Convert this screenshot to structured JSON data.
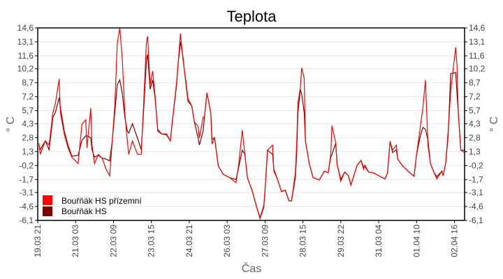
{
  "chart_data": {
    "type": "line",
    "title": "Teplota",
    "xlabel": "Čas",
    "ylabel": "° C",
    "ylabel_right": "° C",
    "x_unit": "hours since 19.03 21",
    "xlim": [
      0,
      338
    ],
    "ylim": [
      -6.1,
      14.6
    ],
    "yticks": [
      "14,6",
      "13,1",
      "11,6",
      "10,2",
      "8,7",
      "7,2",
      "5,7",
      "4,3",
      "2,8",
      "1,3",
      "-0,2",
      "-1,7",
      "-3,1",
      "-4,6",
      "-6,1"
    ],
    "ytick_values": [
      14.6,
      13.1,
      11.6,
      10.2,
      8.7,
      7.2,
      5.7,
      4.3,
      2.8,
      1.3,
      -0.2,
      -1.7,
      -3.1,
      -4.6,
      -6.1
    ],
    "xticks": [
      "19.03 21",
      "21.03 03",
      "22.03 09",
      "23.03 15",
      "24.03 21",
      "26.03 03",
      "27.03 09",
      "28.03 15",
      "29.03 22",
      "31.03 04",
      "01.04 10",
      "02.04 16"
    ],
    "xtick_values": [
      0,
      30,
      60,
      90,
      120,
      150,
      180,
      210,
      240,
      270,
      300,
      330
    ],
    "grid": true,
    "legend_position": "bottom-left",
    "x": [
      1,
      2,
      6,
      9,
      12,
      14,
      17,
      18,
      21,
      24,
      27,
      32,
      35,
      38,
      39,
      42,
      43,
      45,
      48,
      51,
      54,
      57,
      59,
      61,
      63,
      65,
      67,
      69,
      71,
      72,
      75,
      79,
      82,
      84,
      86,
      87,
      89,
      91,
      93,
      95,
      98,
      102,
      105,
      107,
      110,
      111,
      113,
      115,
      117,
      119,
      122,
      124,
      127,
      128,
      131,
      132,
      134,
      137,
      138,
      140,
      143,
      147,
      152,
      157,
      159,
      162,
      164,
      166,
      170,
      173,
      176,
      179,
      180,
      182,
      186,
      187,
      190,
      193,
      196,
      199,
      201,
      204,
      205,
      206,
      208,
      209,
      211,
      212,
      215,
      218,
      223,
      227,
      230,
      232,
      233,
      236,
      237,
      240,
      243,
      246,
      248,
      251,
      253,
      256,
      258,
      259,
      262,
      266,
      270,
      275,
      277,
      279,
      281,
      284,
      285,
      289,
      294,
      298,
      300,
      303,
      305,
      307,
      309,
      311,
      314,
      316,
      320,
      321,
      323,
      325,
      327,
      328,
      331,
      332,
      333,
      335,
      338
    ],
    "series": [
      {
        "name": "Bouřňák HS přízemní",
        "color": "#ff0000",
        "values": [
          2.2,
          1.0,
          2.45,
          2.0,
          5.45,
          6.5,
          9.1,
          5.45,
          3.2,
          1.7,
          0.7,
          0.0,
          4.25,
          4.7,
          1.7,
          6.0,
          2.0,
          0.0,
          1.0,
          0.6,
          -0.55,
          -1.3,
          2.45,
          6.2,
          12.95,
          14.6,
          11.2,
          5.45,
          2.45,
          1.0,
          2.45,
          1.0,
          1.0,
          6.7,
          12.95,
          13.7,
          8.45,
          9.95,
          7.25,
          3.5,
          3.2,
          3.2,
          2.45,
          5.0,
          8.75,
          10.5,
          14.0,
          11.2,
          9.2,
          7.0,
          6.2,
          4.5,
          4.0,
          2.75,
          5.0,
          5.0,
          7.6,
          5.45,
          2.1,
          2.8,
          -0.25,
          -1.15,
          -1.5,
          -2.05,
          -0.25,
          3.6,
          1.0,
          -1.5,
          -3.0,
          -4.5,
          -5.8,
          -4.5,
          -2.8,
          1.45,
          2.0,
          -0.8,
          -1.75,
          -3.0,
          -2.85,
          -4.0,
          -4.0,
          -1.0,
          2.0,
          6.5,
          8.2,
          10.3,
          9.2,
          2.45,
          0.0,
          -1.5,
          -1.75,
          -0.8,
          -1.0,
          1.0,
          4.1,
          2.2,
          0.0,
          -1.9,
          -0.9,
          -1.3,
          -2.3,
          -1.0,
          -0.15,
          0.35,
          -0.6,
          -0.15,
          -0.9,
          -1.0,
          -1.3,
          -1.65,
          -1.0,
          2.4,
          1.45,
          2.0,
          0.5,
          -0.25,
          -0.9,
          -1.35,
          1.0,
          4.0,
          6.0,
          9.0,
          2.0,
          0.0,
          -1.0,
          -1.65,
          -0.8,
          -1.3,
          0.0,
          3.5,
          7.7,
          9.0,
          12.5,
          10.5,
          5.45,
          1.45,
          1.2
        ]
      },
      {
        "name": "Bouřňák HS",
        "color": "#800000",
        "values": [
          2.0,
          1.5,
          2.45,
          1.5,
          5.0,
          5.5,
          7.1,
          6.0,
          3.5,
          2.0,
          0.8,
          0.9,
          2.5,
          3.0,
          3.0,
          2.8,
          1.5,
          0.7,
          0.9,
          0.6,
          0.5,
          0.3,
          2.45,
          5.5,
          8.5,
          9.0,
          7.5,
          5.0,
          3.5,
          3.3,
          4.3,
          2.75,
          1.5,
          6.0,
          11.0,
          11.75,
          8.0,
          9.0,
          7.0,
          3.7,
          3.2,
          3.1,
          2.45,
          5.0,
          8.5,
          10.5,
          13.1,
          11.5,
          9.0,
          6.7,
          6.2,
          4.5,
          2.75,
          2.0,
          3.5,
          5.0,
          7.6,
          5.45,
          2.6,
          2.8,
          -0.25,
          -1.15,
          -1.5,
          -1.7,
          -0.5,
          1.45,
          1.0,
          -1.5,
          -3.0,
          -4.5,
          -5.9,
          -4.7,
          -2.8,
          1.45,
          1.0,
          -0.6,
          -1.75,
          -3.0,
          -2.85,
          -4.0,
          -4.0,
          -1.5,
          1.0,
          5.5,
          8.0,
          7.5,
          5.5,
          2.45,
          0.0,
          -1.5,
          -1.75,
          -0.8,
          -1.0,
          0.7,
          1.0,
          2.2,
          0.0,
          -1.7,
          -0.9,
          -1.3,
          -2.3,
          -1.0,
          -0.15,
          0.35,
          -0.4,
          -0.3,
          -0.9,
          -1.0,
          -1.3,
          -1.65,
          -1.0,
          2.4,
          1.2,
          1.5,
          0.5,
          -0.25,
          -0.9,
          -1.35,
          1.0,
          3.0,
          3.9,
          3.7,
          2.5,
          0.0,
          -1.0,
          -1.4,
          -0.8,
          -1.3,
          0.0,
          3.0,
          9.7,
          9.7,
          9.8,
          7.5,
          5.45,
          1.45,
          1.45
        ]
      }
    ]
  }
}
